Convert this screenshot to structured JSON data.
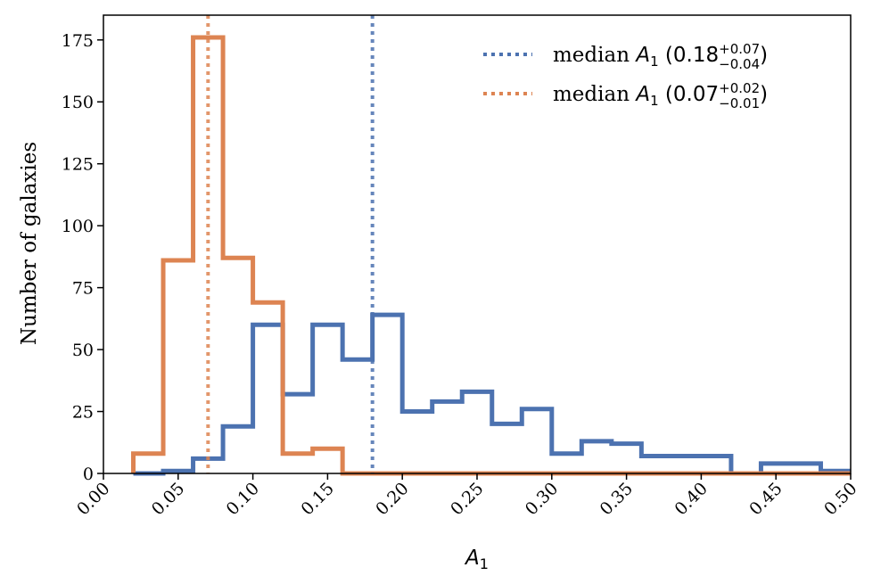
{
  "chart_data": {
    "type": "histogram",
    "title": "",
    "xlabel": "A",
    "xlabel_sub": "1",
    "ylabel": "Number of galaxies",
    "xlim": [
      0.0,
      0.5
    ],
    "ylim": [
      0,
      185
    ],
    "xticks": [
      "0.00",
      "0.05",
      "0.10",
      "0.15",
      "0.20",
      "0.25",
      "0.30",
      "0.35",
      "0.40",
      "0.45",
      "0.50"
    ],
    "yticks": [
      "0",
      "25",
      "50",
      "75",
      "100",
      "125",
      "150",
      "175"
    ],
    "grid": false,
    "legend_position": "top-right",
    "bin_width": 0.02,
    "series": [
      {
        "name": "blue",
        "color": "#4c72b0",
        "bin_start": 0.02,
        "counts": [
          0,
          1,
          6,
          19,
          60,
          32,
          60,
          46,
          64,
          25,
          29,
          33,
          20,
          26,
          8,
          13,
          12,
          7,
          7,
          7,
          0,
          4,
          4,
          1
        ],
        "median": 0.18,
        "legend": {
          "prefix": "median ",
          "var": "A",
          "sub": "1",
          "open": " (",
          "value": "0.18",
          "plus": "+0.07",
          "minus": "−0.04",
          "close": ")"
        }
      },
      {
        "name": "orange",
        "color": "#dd8452",
        "bin_start": 0.02,
        "counts": [
          8,
          86,
          176,
          87,
          69,
          8,
          10,
          0,
          0,
          0,
          0,
          0,
          0,
          0,
          0,
          0,
          0,
          0,
          0,
          0,
          0,
          0,
          0,
          0
        ],
        "median": 0.07,
        "legend": {
          "prefix": "median ",
          "var": "A",
          "sub": "1",
          "open": " (",
          "value": "0.07",
          "plus": "+0.02",
          "minus": "−0.01",
          "close": ")"
        }
      }
    ]
  }
}
